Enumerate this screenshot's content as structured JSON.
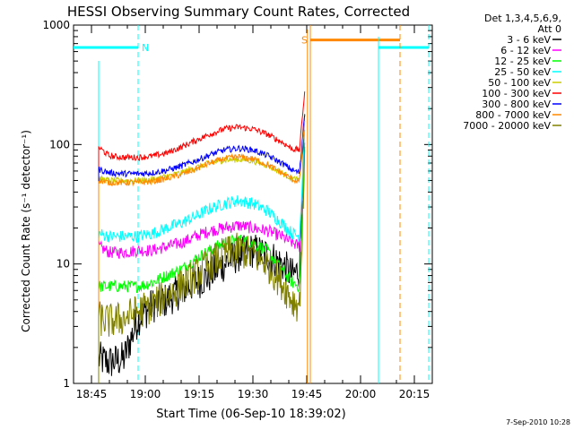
{
  "chart_data": {
    "type": "line",
    "title": "HESSI Observing Summary Count Rates, Corrected",
    "xlabel": "Start Time (06-Sep-10 18:39:02)",
    "ylabel": "Corrected Count Rate (s⁻¹ detector⁻¹)",
    "yscale": "log",
    "ylim": [
      1,
      1000
    ],
    "xlim_minutes_after_1840": [
      0,
      100
    ],
    "x_ticks": [
      {
        "t": 5,
        "label": "18:45"
      },
      {
        "t": 20,
        "label": "19:00"
      },
      {
        "t": 35,
        "label": "19:15"
      },
      {
        "t": 50,
        "label": "19:30"
      },
      {
        "t": 65,
        "label": "19:45"
      },
      {
        "t": 80,
        "label": "20:00"
      },
      {
        "t": 95,
        "label": "20:15"
      }
    ],
    "y_ticks": [
      {
        "v": 1,
        "label": "1"
      },
      {
        "v": 10,
        "label": "10"
      },
      {
        "v": 100,
        "label": "100"
      },
      {
        "v": 1000,
        "label": "1000"
      }
    ],
    "legend_title": [
      "Det 1,3,4,5,6,9,",
      "Att 0"
    ],
    "legend_position": "right",
    "series": [
      {
        "name": "3 - 6 keV",
        "color": "#000000",
        "x": [
          7,
          10,
          14,
          18,
          22,
          26,
          30,
          34,
          38,
          42,
          46,
          50,
          54,
          58,
          61,
          63,
          64.5
        ],
        "y": [
          1.6,
          1.5,
          1.6,
          3.5,
          4.5,
          5,
          6,
          7,
          8,
          10,
          12,
          13,
          12,
          10,
          8,
          9,
          200
        ]
      },
      {
        "name": "6 - 12 keV",
        "color": "#ff00ff",
        "x": [
          7,
          10,
          14,
          18,
          22,
          26,
          30,
          34,
          38,
          42,
          46,
          50,
          54,
          58,
          61,
          63,
          64.5
        ],
        "y": [
          14,
          12.5,
          12.5,
          13,
          13,
          14,
          15,
          17,
          19,
          20,
          21,
          20,
          19,
          17,
          15,
          14,
          120
        ]
      },
      {
        "name": "12 - 25 keV",
        "color": "#00ff00",
        "x": [
          7,
          10,
          14,
          18,
          22,
          26,
          30,
          34,
          38,
          42,
          46,
          50,
          54,
          58,
          61,
          63,
          64.5
        ],
        "y": [
          6.5,
          6.5,
          6.5,
          6.5,
          7,
          8,
          9,
          11,
          13,
          15,
          16,
          15,
          13,
          9,
          7,
          6.5,
          100
        ]
      },
      {
        "name": "25 - 50 keV",
        "color": "#00ffff",
        "x": [
          7,
          10,
          14,
          18,
          22,
          26,
          30,
          34,
          38,
          42,
          46,
          50,
          54,
          58,
          61,
          63,
          64.5
        ],
        "y": [
          18,
          17,
          17,
          17,
          18,
          20,
          22,
          25,
          29,
          32,
          34,
          32,
          28,
          22,
          18,
          17,
          150
        ]
      },
      {
        "name": "50 - 100 keV",
        "color": "#cccc00",
        "x": [
          7,
          10,
          14,
          18,
          22,
          26,
          30,
          34,
          38,
          42,
          46,
          50,
          54,
          58,
          61,
          63,
          64.5
        ],
        "y": [
          52,
          50,
          50,
          50,
          51,
          54,
          58,
          64,
          70,
          74,
          75,
          73,
          67,
          58,
          52,
          50,
          180
        ]
      },
      {
        "name": "100 - 300 keV",
        "color": "#ff0000",
        "x": [
          7,
          10,
          14,
          18,
          22,
          26,
          30,
          34,
          38,
          42,
          46,
          50,
          54,
          58,
          61,
          63,
          64.5
        ],
        "y": [
          95,
          80,
          78,
          78,
          80,
          85,
          95,
          108,
          122,
          135,
          140,
          135,
          122,
          105,
          92,
          90,
          300
        ]
      },
      {
        "name": "300 - 800 keV",
        "color": "#0000ff",
        "x": [
          7,
          10,
          14,
          18,
          22,
          26,
          30,
          34,
          38,
          42,
          46,
          50,
          54,
          58,
          61,
          63,
          64.5
        ],
        "y": [
          62,
          58,
          57,
          57,
          58,
          61,
          66,
          73,
          82,
          90,
          93,
          90,
          81,
          70,
          61,
          58,
          200
        ]
      },
      {
        "name": "800 - 7000 keV",
        "color": "#ff8800",
        "x": [
          7,
          10,
          14,
          18,
          22,
          26,
          30,
          34,
          38,
          42,
          46,
          50,
          54,
          58,
          61,
          63,
          64.5
        ],
        "y": [
          50,
          48,
          48,
          48,
          49,
          52,
          56,
          62,
          70,
          76,
          79,
          76,
          68,
          58,
          51,
          49,
          170
        ]
      },
      {
        "name": "7000 - 20000 keV",
        "color": "#808000",
        "x": [
          7,
          10,
          14,
          18,
          22,
          26,
          30,
          34,
          38,
          42,
          46,
          50,
          54,
          58,
          61,
          63,
          64.5
        ],
        "y": [
          3.5,
          3.3,
          3.5,
          4,
          4.5,
          5.5,
          6.5,
          8,
          10,
          12,
          13,
          12,
          10,
          7,
          5,
          4.5,
          80
        ]
      }
    ],
    "annotations": [
      {
        "label": "N",
        "color": "#00ffff",
        "type": "night",
        "x_start": 0,
        "x_end": 18,
        "y": 650
      },
      {
        "label": "",
        "color": "#00ffff",
        "type": "night",
        "x_start": 85,
        "x_end": 99,
        "y": 650
      },
      {
        "label": "S",
        "color": "#ff8800",
        "type": "saa",
        "x_start": 66,
        "x_end": 91,
        "y": 750
      }
    ],
    "timestamp": "7-Sep-2010 10:28"
  }
}
